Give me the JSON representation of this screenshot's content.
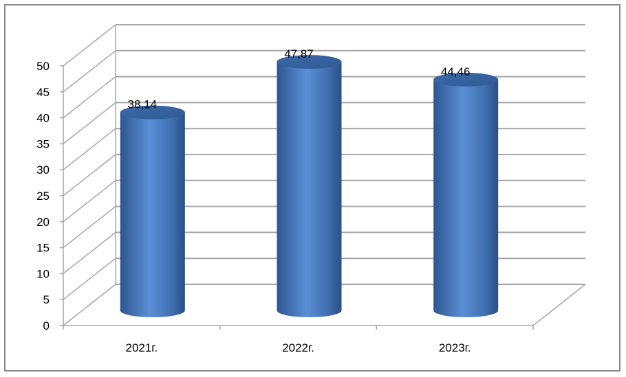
{
  "chart_data": {
    "type": "bar",
    "style": "3d-cylinder",
    "title": "",
    "xlabel": "",
    "ylabel": "",
    "categories": [
      "2021г.",
      "2022г.",
      "2023г."
    ],
    "values": [
      38.14,
      47.87,
      44.46
    ],
    "data_labels": [
      "38,14",
      "47,87",
      "44,46"
    ],
    "ylim": [
      0,
      50
    ],
    "yticks": [
      0,
      5,
      10,
      15,
      20,
      25,
      30,
      35,
      40,
      45,
      50
    ],
    "grid": true,
    "legend": "none",
    "colors": {
      "bar": "#4a7bc0",
      "bar_dark": "#2d5690",
      "grid": "#a6a6a6"
    }
  }
}
